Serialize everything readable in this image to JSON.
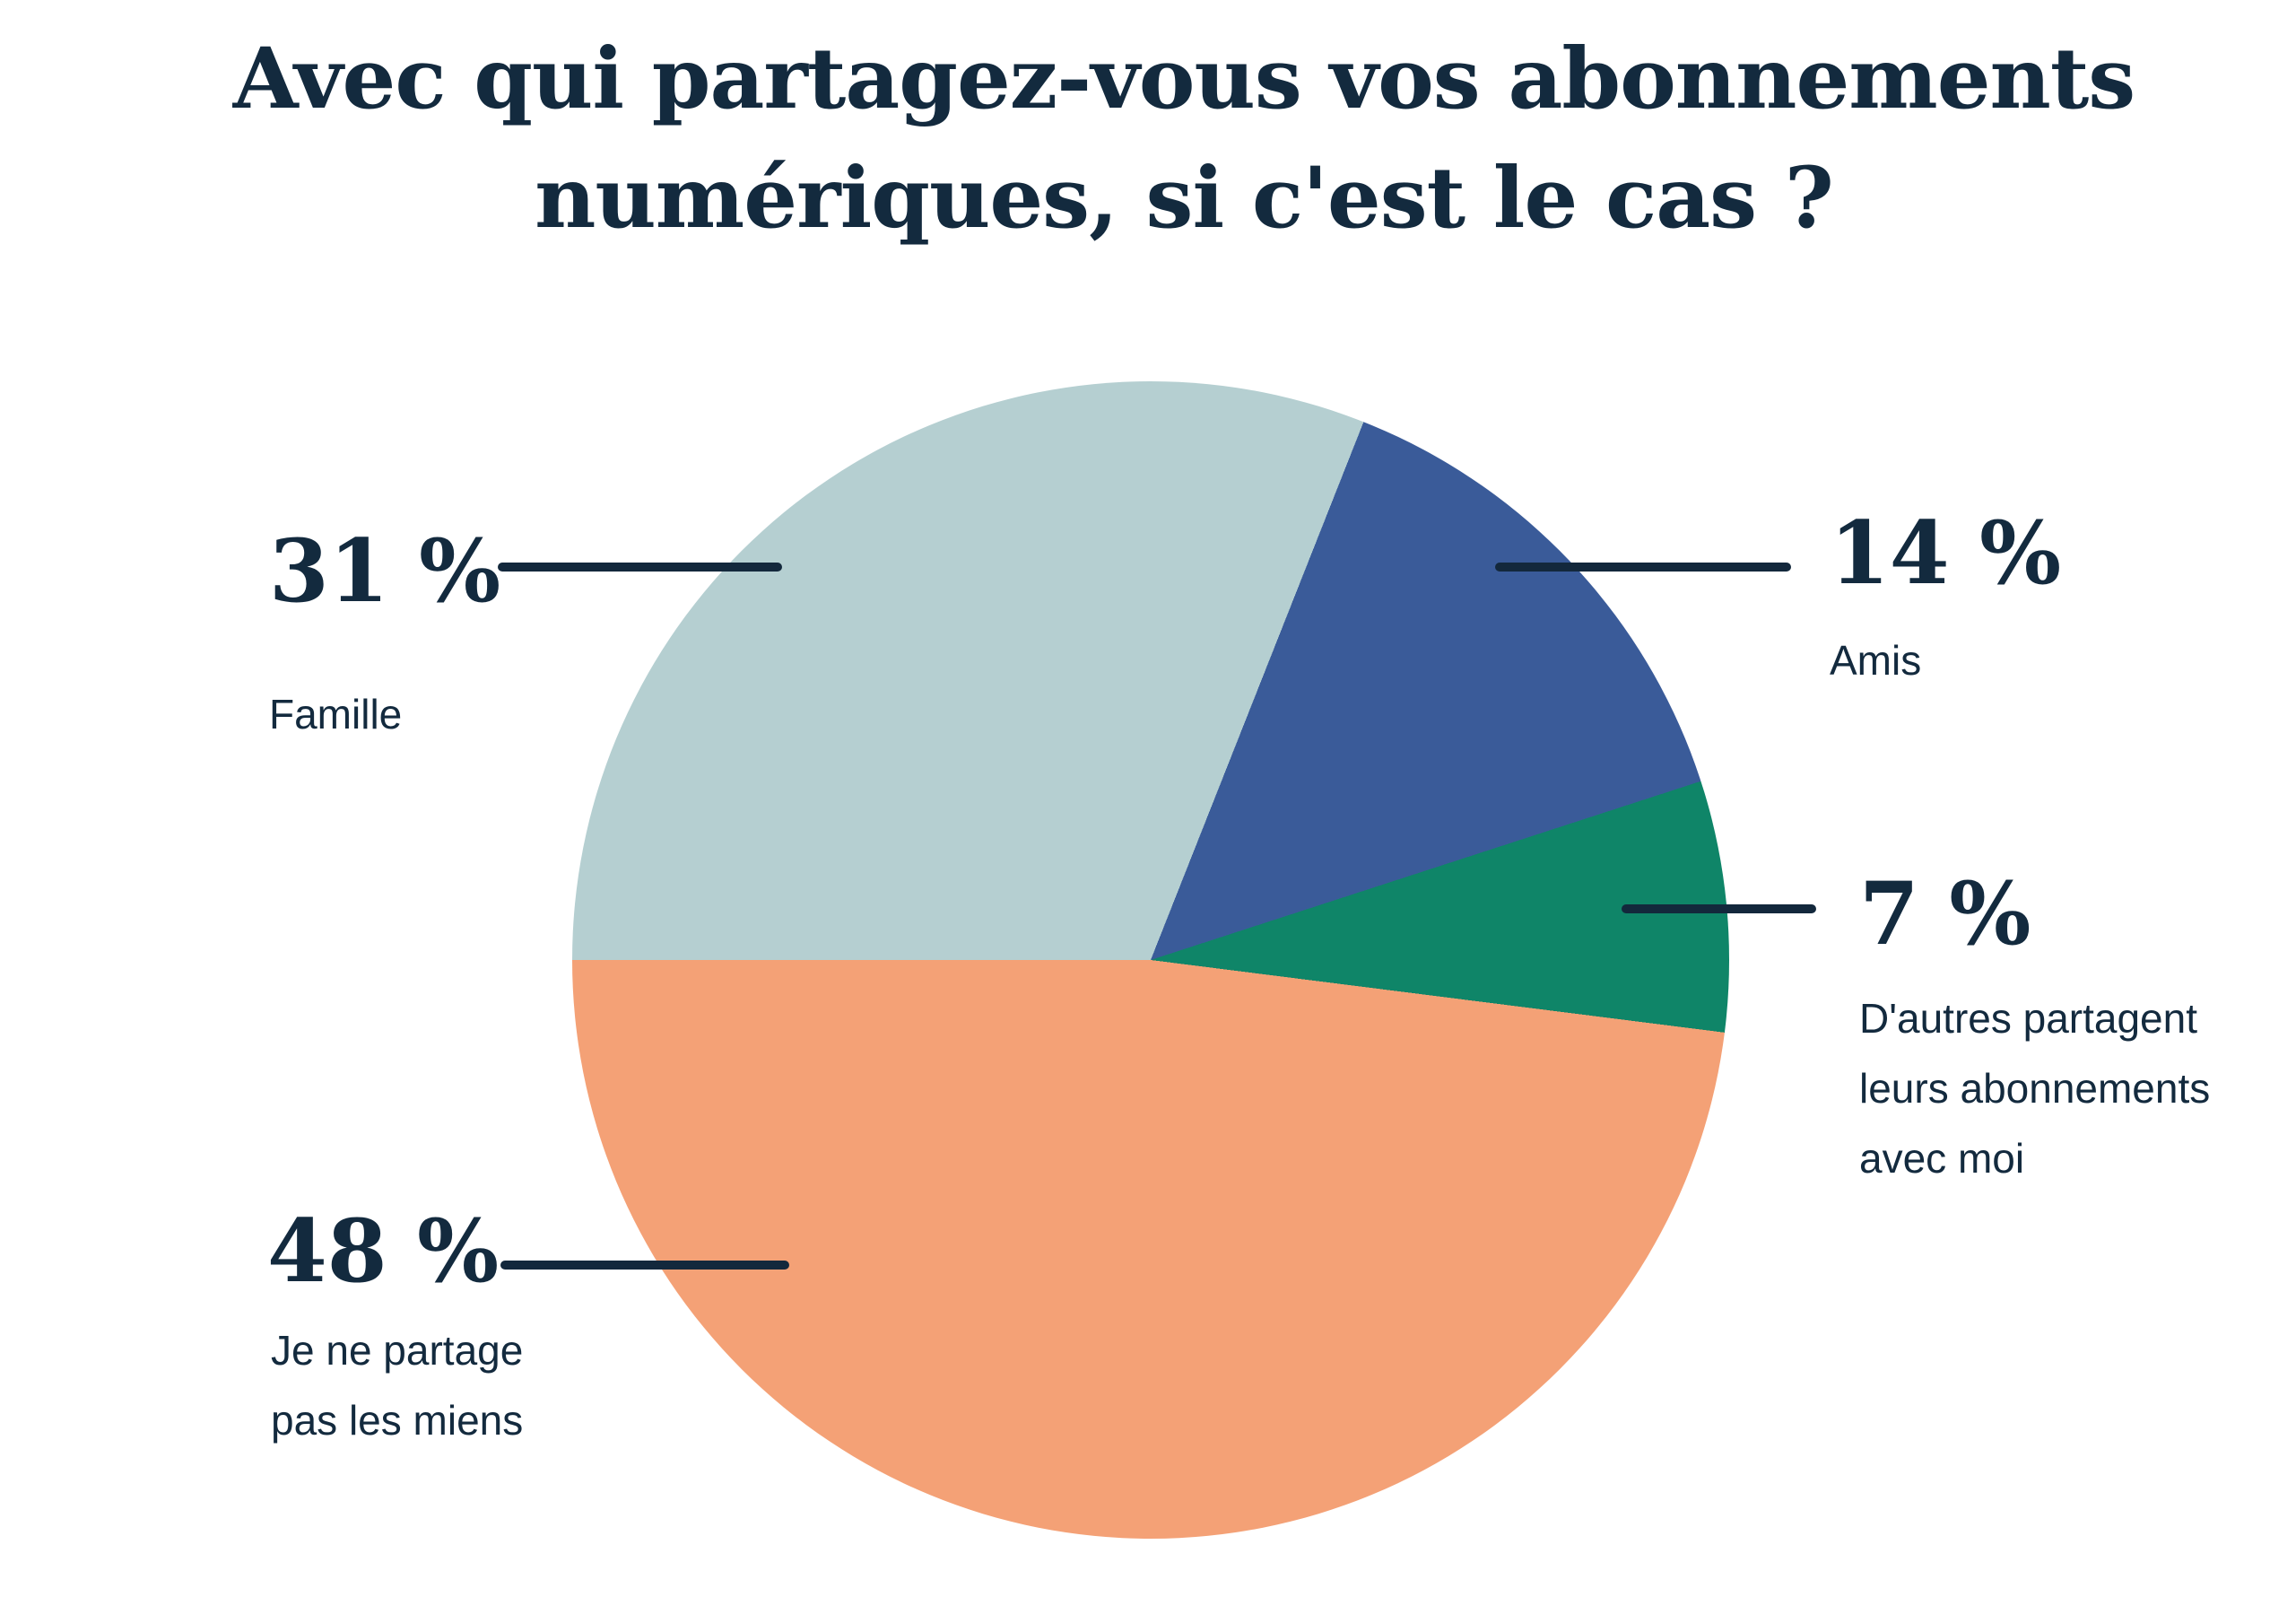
{
  "title": {
    "line1": "Avec qui partagez-vous vos abonnements",
    "line2": "numériques, si c'est le cas ?"
  },
  "chart_data": {
    "type": "pie",
    "title": "Avec qui partagez-vous vos abonnements numériques, si c'est le cas ?",
    "start_angle_deg": 270,
    "direction": "clockwise",
    "legend_position": "outside-callouts",
    "slices": [
      {
        "label": "Famille",
        "value": 31,
        "color": "#b5cfd1"
      },
      {
        "label": "Amis",
        "value": 14,
        "color": "#3a5b99"
      },
      {
        "label": "D'autres partagent leurs abonnements avec moi",
        "value": 7,
        "color": "#0f8568"
      },
      {
        "label": "Je ne partage pas les miens",
        "value": 48,
        "color": "#f4a176"
      }
    ]
  },
  "labels": {
    "famille": {
      "pct": "31 %",
      "name": "Famille"
    },
    "amis": {
      "pct": "14 %",
      "name": "Amis"
    },
    "autres": {
      "pct": "7 %",
      "desc_line1": "D'autres partagent",
      "desc_line2": "leurs abonnements",
      "desc_line3": "avec moi"
    },
    "moi": {
      "pct": "48 %",
      "desc_line1": "Je ne partage",
      "desc_line2": "pas les miens"
    }
  },
  "colors": {
    "text_navy": "#132a3e",
    "leader_line": "#13283c",
    "background": "#ffffff"
  }
}
